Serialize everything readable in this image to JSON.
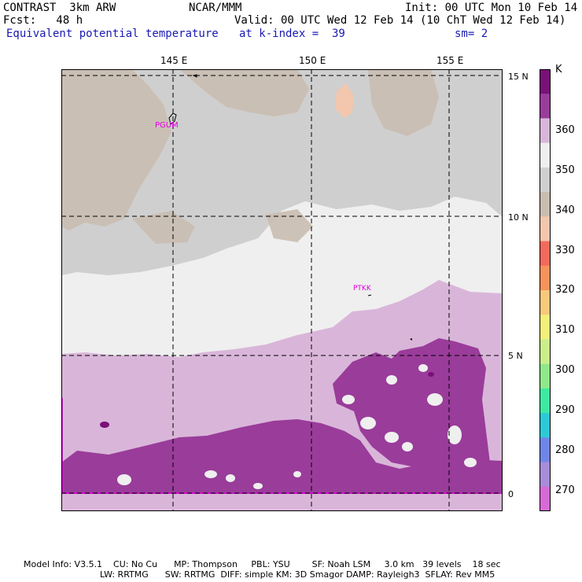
{
  "header": {
    "model": "CONTRAST  3km ARW",
    "center": "NCAR/MMM",
    "init": "Init: 00 UTC Mon 10 Feb 14",
    "fcst": "Fcst:   48 h",
    "valid": "Valid: 00 UTC Wed 12 Feb 14 (10 ChT Wed 12 Feb 14)",
    "field": "Equivalent potential temperature",
    "level": "at k-index =  39",
    "smooth": "sm= 2"
  },
  "map": {
    "lon_labels": [
      "145 E",
      "150 E",
      "155 E"
    ],
    "lat_labels": [
      "15 N",
      "10 N",
      "5 N",
      "0"
    ],
    "stations": [
      "PGUM",
      "PTKK"
    ]
  },
  "colorbar": {
    "unit": "K",
    "labels": [
      "360",
      "350",
      "340",
      "330",
      "320",
      "310",
      "300",
      "290",
      "280",
      "270"
    ],
    "colors": [
      "#7a1078",
      "#9a3c9a",
      "#d9b6d9",
      "#efefef",
      "#cfcfcf",
      "#c9bdb0",
      "#f3c7ad",
      "#f26a5a",
      "#f5935b",
      "#f7c97a",
      "#f3f07a",
      "#c9ef8a",
      "#8fe88a",
      "#3ee8a2",
      "#2ec9d6",
      "#6f86e8",
      "#a88cd9",
      "#d76ad6"
    ]
  },
  "footer": {
    "line1": "Model Info: V3.5.1    CU: No Cu      MP: Thompson     PBL: YSU        SF: Noah LSM     3.0 km   39 levels    18 sec",
    "line2": "LW: RRTMG      SW: RRTMG  DIFF: simple KM: 3D Smagor DAMP: Rayleigh3  SFLAY: Rev MM5"
  }
}
